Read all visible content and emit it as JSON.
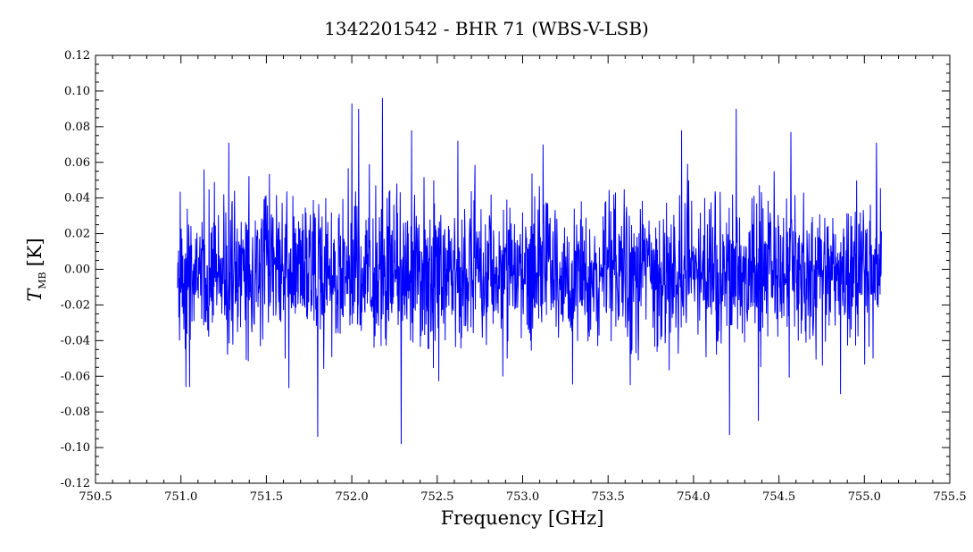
{
  "chart_data": {
    "type": "line",
    "title": "1342201542 - BHR 71 (WBS-V-LSB)",
    "xlabel": "Frequency [GHz]",
    "ylabel_main": "T",
    "ylabel_sub": "MB",
    "ylabel_unit": "[K]",
    "xlim": [
      750.5,
      755.5
    ],
    "ylim": [
      -0.12,
      0.12
    ],
    "x_ticks": [
      "750.5",
      "751.0",
      "751.5",
      "752.0",
      "752.5",
      "753.0",
      "753.5",
      "754.0",
      "754.5",
      "755.0",
      "755.5"
    ],
    "y_ticks": [
      "0.12",
      "0.10",
      "0.08",
      "0.06",
      "0.04",
      "0.02",
      "0.00",
      "-0.02",
      "-0.04",
      "-0.06",
      "-0.08",
      "-0.10",
      "-0.12"
    ],
    "grid": false,
    "series": [
      {
        "color": "#0000ff",
        "description_note": "noise spectrum",
        "x_range": [
          750.98,
          755.1
        ],
        "baseline": 0.0,
        "extrema": [
          {
            "x": 751.03,
            "y": -0.066
          },
          {
            "x": 751.05,
            "y": -0.066
          },
          {
            "x": 751.28,
            "y": 0.071
          },
          {
            "x": 751.8,
            "y": -0.094
          },
          {
            "x": 752.0,
            "y": 0.093
          },
          {
            "x": 752.04,
            "y": 0.09
          },
          {
            "x": 752.18,
            "y": 0.096
          },
          {
            "x": 752.29,
            "y": -0.098
          },
          {
            "x": 752.35,
            "y": 0.078
          },
          {
            "x": 752.62,
            "y": 0.072
          },
          {
            "x": 753.12,
            "y": 0.07
          },
          {
            "x": 753.63,
            "y": -0.065
          },
          {
            "x": 753.93,
            "y": 0.078
          },
          {
            "x": 754.21,
            "y": -0.093
          },
          {
            "x": 754.25,
            "y": 0.09
          },
          {
            "x": 754.38,
            "y": -0.085
          },
          {
            "x": 754.57,
            "y": 0.077
          },
          {
            "x": 754.86,
            "y": -0.07
          },
          {
            "x": 755.07,
            "y": 0.071
          }
        ]
      }
    ]
  },
  "colors": {
    "series": "#0000ff",
    "axes": "#000000",
    "background": "#ffffff"
  }
}
